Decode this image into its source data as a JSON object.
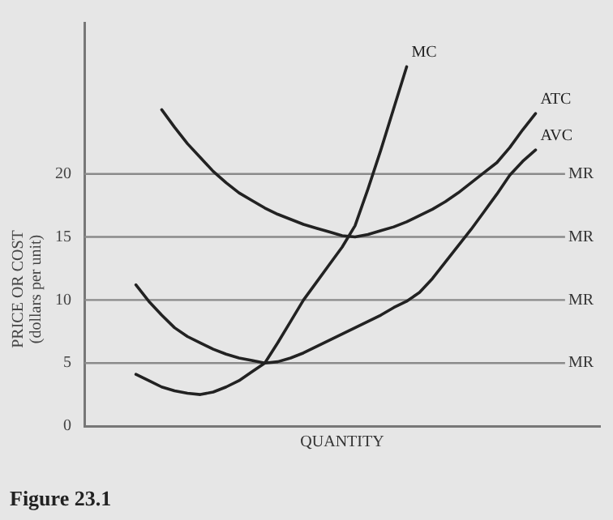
{
  "chart_data": {
    "type": "line",
    "xlabel": "QUANTITY",
    "ylabel": "PRICE OR COST\n(dollars per unit)",
    "annotations": [
      "Figure 23.1"
    ],
    "categories": [
      null,
      null,
      null,
      null,
      null,
      null,
      null,
      null,
      null,
      null,
      null,
      null,
      null,
      null,
      null,
      null,
      null,
      null,
      null,
      null,
      null,
      null,
      null,
      null,
      null,
      null,
      null,
      null,
      null,
      null,
      null,
      null,
      null,
      null,
      null,
      null,
      null,
      null,
      null,
      null,
      null
    ],
    "ylim": [
      0,
      32
    ],
    "yticks": [
      0,
      5,
      10,
      15,
      20
    ],
    "tick_labels": "y",
    "grid": false,
    "legend": false,
    "marker": "none",
    "line_style": "solid",
    "series": [
      {
        "name": "MC",
        "color": "#222222",
        "values": [
          null,
          null,
          null,
          null,
          4.1,
          3.6,
          3.1,
          2.8,
          2.6,
          2.5,
          2.7,
          3.1,
          3.6,
          4.3,
          5,
          6.6,
          8.3,
          10,
          11.4,
          12.8,
          14.2,
          15.9,
          18.8,
          21.9,
          25.2,
          28.5,
          null,
          null,
          null,
          null,
          null,
          null,
          null,
          null,
          null,
          null,
          null,
          null,
          null,
          null,
          null
        ]
      },
      {
        "name": "ATC",
        "color": "#222222",
        "values": [
          null,
          null,
          null,
          null,
          null,
          null,
          25.1,
          23.7,
          22.4,
          21.3,
          20.2,
          19.3,
          18.5,
          17.9,
          17.3,
          16.8,
          16.4,
          16,
          15.7,
          15.4,
          15.1,
          15,
          15.2,
          15.5,
          15.8,
          16.2,
          16.7,
          17.2,
          17.8,
          18.5,
          19.3,
          20.1,
          20.9,
          22.1,
          23.5,
          24.8,
          null,
          null,
          null,
          null,
          null
        ]
      },
      {
        "name": "AVC",
        "color": "#222222",
        "values": [
          null,
          null,
          null,
          null,
          11.2,
          9.9,
          8.8,
          7.8,
          7.1,
          6.6,
          6.1,
          5.7,
          5.4,
          5.2,
          5,
          5.1,
          5.4,
          5.8,
          6.3,
          6.8,
          7.3,
          7.8,
          8.3,
          8.8,
          9.4,
          9.9,
          10.6,
          11.7,
          13,
          14.3,
          15.6,
          17,
          18.4,
          19.9,
          21,
          21.9,
          null,
          null,
          null,
          null,
          null
        ]
      }
    ],
    "ref_lines": [
      {
        "axis": "y",
        "value": 20,
        "label": "MR",
        "color": "#8a8a8a"
      },
      {
        "axis": "y",
        "value": 15,
        "label": "MR",
        "color": "#8a8a8a"
      },
      {
        "axis": "y",
        "value": 10,
        "label": "MR",
        "color": "#8a8a8a"
      },
      {
        "axis": "y",
        "value": 5,
        "label": "MR",
        "color": "#8a8a8a"
      }
    ]
  }
}
